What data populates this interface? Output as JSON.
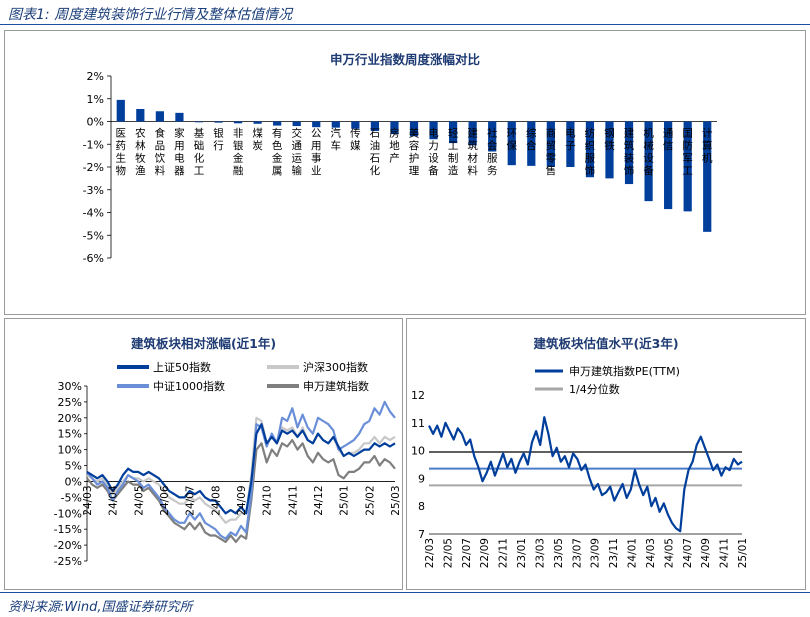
{
  "figure": {
    "title": "图表1:  周度建筑装饰行业行情及整体估值情况",
    "source": "资料来源:Wind,国盛证券研究所"
  },
  "colors": {
    "dark_blue": "#003e9c",
    "mid_blue": "#6a8fd8",
    "light_gray": "#c8c8c8",
    "dark_gray": "#7f7f7f",
    "ref_line_blue": "#4a7cc9",
    "ref_line_gray": "#a6a6a6",
    "ref_line_dark": "#606060"
  },
  "chart_data": [
    {
      "type": "bar",
      "title": "申万行业指数周度涨幅对比",
      "categories": [
        "医药生物",
        "农林牧渔",
        "食品饮料",
        "家用电器",
        "基础化工",
        "银行",
        "非银金融",
        "煤炭",
        "有色金属",
        "交通运输",
        "公用事业",
        "汽车",
        "传媒",
        "石油石化",
        "房地产",
        "美容护理",
        "电力设备",
        "轻工制造",
        "建筑材料",
        "社会服务",
        "环保",
        "综合",
        "商贸零售",
        "电子",
        "纺织服饰",
        "钢铁",
        "建筑装饰",
        "机械设备",
        "通信",
        "国防军工",
        "计算机"
      ],
      "values": [
        0.95,
        0.55,
        0.45,
        0.38,
        -0.02,
        -0.05,
        -0.08,
        -0.1,
        -0.18,
        -0.2,
        -0.25,
        -0.27,
        -0.32,
        -0.42,
        -0.55,
        -0.65,
        -0.78,
        -0.95,
        -1.05,
        -1.32,
        -1.92,
        -1.95,
        -1.98,
        -2.0,
        -2.45,
        -2.5,
        -2.75,
        -3.5,
        -3.85,
        -3.95,
        -4.85
      ],
      "yticks": [
        "2%",
        "1%",
        "0%",
        "-1%",
        "-2%",
        "-3%",
        "-4%",
        "-5%",
        "-6%"
      ],
      "ylim": [
        -6,
        2
      ],
      "grid": false
    },
    {
      "type": "line",
      "title": "建筑板块相对涨幅(近1年)",
      "x_range": [
        "2024-03",
        "2025-03"
      ],
      "xticks": [
        "24/03",
        "24/04",
        "24/05",
        "24/06",
        "24/07",
        "24/08",
        "24/09",
        "24/10",
        "24/11",
        "24/12",
        "25/01",
        "25/02",
        "25/03"
      ],
      "yticks": [
        "30%",
        "25%",
        "20%",
        "15%",
        "10%",
        "5%",
        "0%",
        "-5%",
        "-10%",
        "-15%",
        "-20%",
        "-25%"
      ],
      "ylim": [
        -25,
        30
      ],
      "legend": "top, 2 columns",
      "series": [
        {
          "name": "上证50指数",
          "color": "#003e9c",
          "values": [
            3,
            2,
            1,
            2,
            0,
            -3,
            -1,
            2,
            4,
            3,
            3,
            2,
            3,
            2,
            1,
            -1,
            -3,
            -4,
            -5,
            -5,
            -3,
            -4,
            -3,
            -5,
            -6,
            -6,
            -8,
            -10,
            -9,
            -10,
            -8,
            -10,
            0,
            15,
            18,
            12,
            14,
            12,
            16,
            15,
            16,
            14,
            16,
            13,
            12,
            15,
            13,
            12,
            14,
            11,
            8,
            9,
            8,
            9,
            10,
            10,
            12,
            11,
            12,
            11,
            12
          ]
        },
        {
          "name": "沪深300指数",
          "color": "#c8c8c8",
          "values": [
            2,
            1,
            0,
            1,
            -1,
            -4,
            -2,
            0,
            2,
            1,
            1,
            0,
            1,
            0,
            -1,
            -3,
            -5,
            -6,
            -7,
            -7,
            -5,
            -6,
            -5,
            -7,
            -8,
            -9,
            -11,
            -13,
            -12,
            -12,
            -10,
            -10,
            2,
            20,
            19,
            12,
            14,
            12,
            17,
            16,
            17,
            14,
            17,
            13,
            12,
            15,
            13,
            12,
            14,
            10,
            8,
            9,
            9,
            10,
            12,
            12,
            14,
            12,
            14,
            13,
            14
          ]
        },
        {
          "name": "中证1000指数",
          "color": "#6a8fd8",
          "values": [
            3,
            1,
            -1,
            0,
            -2,
            -6,
            -3,
            -1,
            2,
            1,
            0,
            -2,
            -1,
            -3,
            -5,
            -8,
            -10,
            -12,
            -13,
            -13,
            -10,
            -12,
            -10,
            -13,
            -14,
            -15,
            -17,
            -18,
            -16,
            -17,
            -14,
            -16,
            -4,
            18,
            17,
            11,
            15,
            12,
            20,
            19,
            23,
            17,
            21,
            17,
            15,
            20,
            19,
            18,
            16,
            10,
            11,
            12,
            13,
            15,
            18,
            19,
            23,
            21,
            25,
            22,
            20
          ]
        },
        {
          "name": "申万建筑指数",
          "color": "#7f7f7f",
          "values": [
            1,
            -1,
            -2,
            -1,
            -3,
            -6,
            -4,
            -2,
            0,
            -1,
            -1,
            -3,
            -2,
            -4,
            -6,
            -9,
            -11,
            -13,
            -14,
            -15,
            -13,
            -15,
            -13,
            -16,
            -17,
            -17,
            -18,
            -19,
            -17,
            -19,
            -17,
            -18,
            -6,
            10,
            12,
            6,
            10,
            8,
            12,
            11,
            13,
            10,
            12,
            8,
            6,
            9,
            7,
            6,
            7,
            2,
            1,
            3,
            3,
            4,
            6,
            6,
            8,
            5,
            7,
            6,
            4
          ]
        }
      ]
    },
    {
      "type": "line",
      "title": "建筑板块估值水平(近3年)",
      "x_range": [
        "2022-03",
        "2025-03"
      ],
      "xticks": [
        "22/03",
        "22/05",
        "22/07",
        "22/09",
        "22/11",
        "23/01",
        "23/03",
        "23/05",
        "23/07",
        "23/09",
        "23/11",
        "24/01",
        "24/03",
        "24/05",
        "24/07",
        "24/09",
        "24/11",
        "25/01"
      ],
      "yticks": [
        "12",
        "11",
        "10",
        "9",
        "8",
        "7"
      ],
      "ylim": [
        7,
        12
      ],
      "legend": "top",
      "series": [
        {
          "name": "申万建筑指数PE(TTM)",
          "color": "#003e9c",
          "values": [
            10.9,
            10.6,
            10.9,
            10.5,
            11.0,
            10.7,
            10.4,
            10.8,
            10.6,
            10.2,
            10.4,
            9.8,
            9.4,
            8.9,
            9.2,
            9.6,
            9.1,
            9.5,
            9.9,
            9.4,
            9.7,
            9.2,
            9.6,
            9.9,
            9.5,
            10.3,
            10.7,
            10.2,
            11.2,
            10.6,
            9.8,
            10.1,
            9.6,
            9.8,
            9.4,
            9.9,
            9.7,
            9.3,
            9.5,
            9.0,
            8.6,
            8.8,
            8.4,
            8.5,
            8.7,
            8.2,
            8.5,
            8.8,
            8.3,
            8.6,
            9.3,
            8.8,
            8.4,
            8.7,
            8.0,
            8.3,
            7.8,
            8.1,
            7.7,
            7.4,
            7.2,
            7.1,
            8.6,
            9.3,
            9.6,
            10.2,
            10.5,
            10.1,
            9.7,
            9.3,
            9.5,
            9.1,
            9.4,
            9.3,
            9.7,
            9.5,
            9.6
          ]
        },
        {
          "name": "1/4分位数",
          "color": "#a6a6a6",
          "values": [
            8.75
          ]
        }
      ],
      "reference_lines": [
        {
          "value": 9.95,
          "color": "#606060"
        },
        {
          "value": 9.35,
          "color": "#4a7cc9"
        },
        {
          "value": 8.75,
          "color": "#a6a6a6"
        }
      ]
    }
  ]
}
